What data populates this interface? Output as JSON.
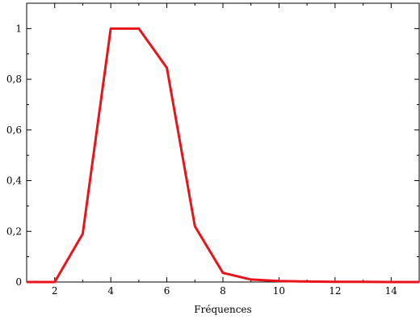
{
  "chart_data": {
    "type": "line",
    "title": "",
    "xlabel": "Fréquences",
    "ylabel": "",
    "xlim": [
      1,
      15
    ],
    "ylim": [
      0,
      1.1
    ],
    "x_ticks": [
      2,
      4,
      6,
      8,
      10,
      12,
      14
    ],
    "y_ticks": [
      0,
      0.2,
      0.4,
      0.6,
      0.8,
      1
    ],
    "y_tick_labels": [
      "0",
      "0,2",
      "0,4",
      "0,6",
      "0,8",
      "1"
    ],
    "grid": false,
    "legend": "none",
    "series": [
      {
        "color": "#e8141c",
        "x": [
          1,
          2,
          3,
          4,
          5,
          6,
          7,
          8,
          9,
          10,
          11,
          12,
          13,
          14,
          15
        ],
        "y": [
          0,
          0,
          0.19,
          1,
          1,
          0.845,
          0.22,
          0.036,
          0.01,
          0.004,
          0.002,
          0.001,
          0.001,
          0,
          0
        ]
      }
    ]
  }
}
